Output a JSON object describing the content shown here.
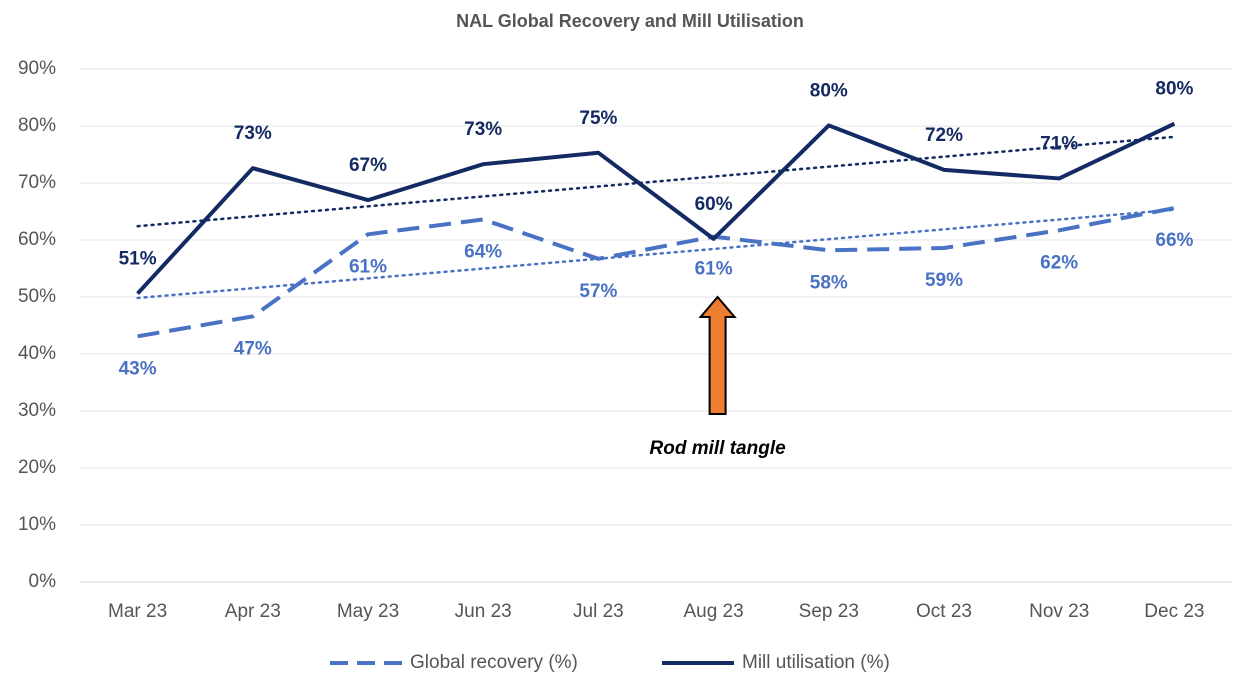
{
  "chart_data": {
    "type": "line",
    "title": "NAL Global Recovery and Mill Utilisation",
    "categories": [
      "Mar 23",
      "Apr 23",
      "May 23",
      "Jun 23",
      "Jul 23",
      "Aug 23",
      "Sep 23",
      "Oct 23",
      "Nov 23",
      "Dec 23"
    ],
    "series": [
      {
        "name": "Global recovery (%)",
        "color": "#4a72c4",
        "dash": "dashed",
        "trendline": "linear",
        "values": [
          43.1,
          46.6,
          61.0,
          63.6,
          56.7,
          60.6,
          58.2,
          58.6,
          61.7,
          65.6
        ],
        "value_labels": [
          "43%",
          "47%",
          "61%",
          "64%",
          "57%",
          "61%",
          "58%",
          "59%",
          "62%",
          "66%"
        ]
      },
      {
        "name": "Mill utilisation (%)",
        "color": "#132a62",
        "dash": "solid",
        "trendline": "linear",
        "values": [
          50.6,
          72.6,
          67.0,
          73.3,
          75.3,
          60.2,
          80.1,
          72.3,
          70.8,
          80.4
        ],
        "value_labels": [
          "51%",
          "73%",
          "67%",
          "73%",
          "75%",
          "60%",
          "80%",
          "72%",
          "71%",
          "80%"
        ]
      }
    ],
    "ylim": [
      0,
      90
    ],
    "yticks": [
      {
        "value": 0,
        "label": "0%"
      },
      {
        "value": 10,
        "label": "10%"
      },
      {
        "value": 20,
        "label": "20%"
      },
      {
        "value": 30,
        "label": "30%"
      },
      {
        "value": 40,
        "label": "40%"
      },
      {
        "value": 50,
        "label": "50%"
      },
      {
        "value": 60,
        "label": "60%"
      },
      {
        "value": 70,
        "label": "70%"
      },
      {
        "value": 80,
        "label": "80%"
      },
      {
        "value": 90,
        "label": "90%"
      }
    ],
    "grid": true,
    "legend": "bottom",
    "annotations": [
      {
        "text": "Rod mill tangle",
        "category": "Aug 23",
        "color": "#ed7d31"
      }
    ]
  }
}
